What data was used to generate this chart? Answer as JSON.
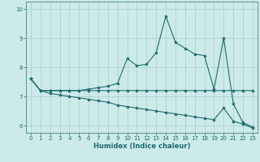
{
  "xlabel": "Humidex (Indice chaleur)",
  "xlim_min": -0.5,
  "xlim_max": 23.5,
  "ylim_min": 5.75,
  "ylim_max": 10.25,
  "yticks": [
    6,
    7,
    8,
    9,
    10
  ],
  "xticks": [
    0,
    1,
    2,
    3,
    4,
    5,
    6,
    7,
    8,
    9,
    10,
    11,
    12,
    13,
    14,
    15,
    16,
    17,
    18,
    19,
    20,
    21,
    22,
    23
  ],
  "bg_color": "#cceaea",
  "grid_color": "#aacccc",
  "line_color": "#1f6b6b",
  "series1": [
    7.6,
    7.2,
    7.2,
    7.2,
    7.2,
    7.2,
    7.25,
    7.3,
    7.35,
    7.45,
    8.3,
    8.05,
    8.1,
    8.5,
    9.75,
    8.85,
    8.65,
    8.45,
    8.4,
    7.25,
    9.0,
    6.75,
    6.1,
    5.95
  ],
  "series2": [
    7.6,
    7.2,
    7.2,
    7.2,
    7.2,
    7.2,
    7.2,
    7.2,
    7.2,
    7.2,
    7.2,
    7.2,
    7.2,
    7.2,
    7.2,
    7.2,
    7.2,
    7.2,
    7.2,
    7.2,
    7.2,
    7.2,
    7.2,
    7.2
  ],
  "series3": [
    7.6,
    7.2,
    7.1,
    7.05,
    7.0,
    6.95,
    6.9,
    6.85,
    6.8,
    6.7,
    6.65,
    6.6,
    6.55,
    6.5,
    6.45,
    6.4,
    6.35,
    6.3,
    6.25,
    6.2,
    6.6,
    6.15,
    6.05,
    5.92
  ]
}
